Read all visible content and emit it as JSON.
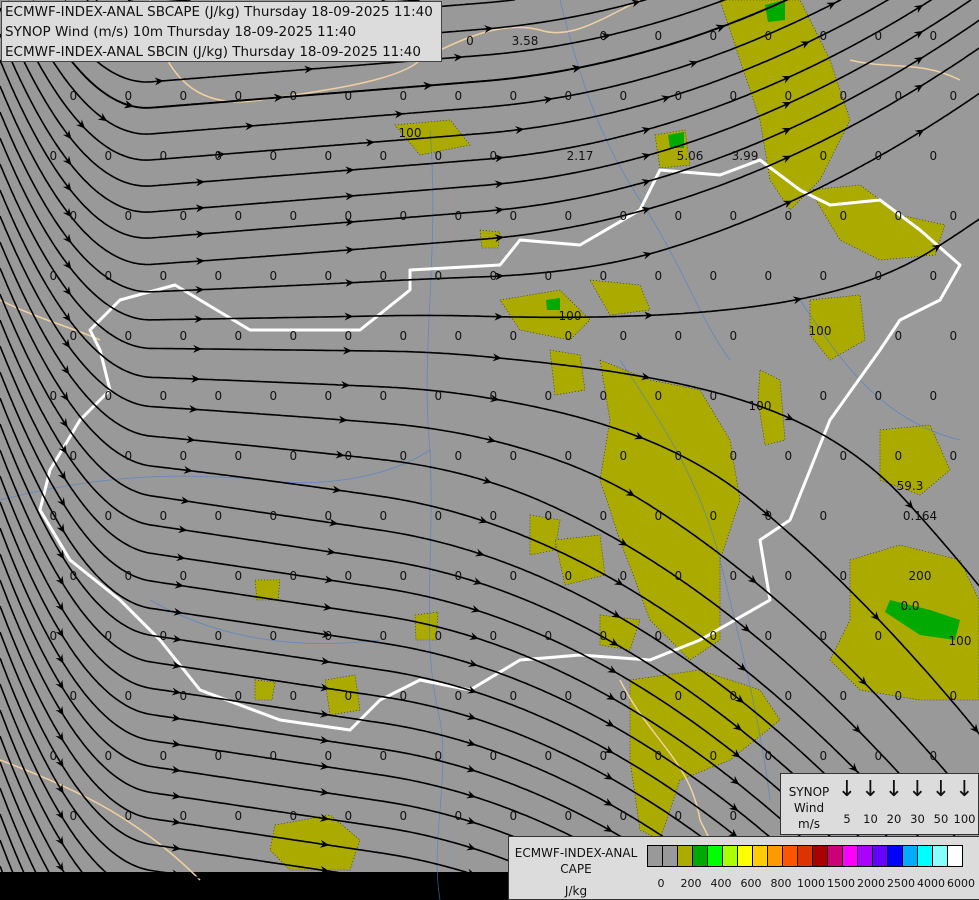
{
  "title_lines": [
    "ECMWF-INDEX-ANAL SBCAPE (J/kg) Thursday 18-09-2025 11:40",
    "SYNOP Wind (m/s) 10m Thursday 18-09-2025 11:40",
    "ECMWF-INDEX-ANAL SBCIN (J/kg) Thursday 18-09-2025 11:40"
  ],
  "map": {
    "background": "#999999",
    "cape_fill_color": "#aaaa00",
    "cape_high_color": "#00aa00",
    "country_border_color": "#ffffff",
    "other_border_color": "#f0d0a0",
    "river_color": "#4a7fd0",
    "streamline_color": "#000000",
    "value_labels": [
      "0",
      "3.58",
      "2.17",
      "5.06",
      "3.99",
      "100",
      "100",
      "100",
      "100",
      "59.3",
      "0.164",
      "200",
      "0.0",
      "100"
    ]
  },
  "wind_legend": {
    "title": [
      "SYNOP",
      "Wind",
      "m/s"
    ],
    "icon": "arrow-down-icon",
    "speeds": [
      "5",
      "10",
      "20",
      "30",
      "50",
      "100"
    ]
  },
  "cape_legend": {
    "title": [
      "ECMWF-INDEX-ANAL",
      "CAPE",
      "J/kg"
    ],
    "colors": [
      "#999999",
      "#999999",
      "#aaaa00",
      "#00aa00",
      "#00ff00",
      "#aaff00",
      "#ffff00",
      "#ffcc00",
      "#ff9900",
      "#ff5500",
      "#dd3300",
      "#aa0000",
      "#cc0077",
      "#ff00ff",
      "#aa00ff",
      "#6600ff",
      "#0000ff",
      "#00aaff",
      "#00ffff",
      "#88ffff",
      "#ffffff"
    ],
    "ticks": [
      "0",
      "200",
      "400",
      "600",
      "800",
      "1000",
      "1500",
      "2000",
      "2500",
      "4000",
      "6000"
    ]
  }
}
